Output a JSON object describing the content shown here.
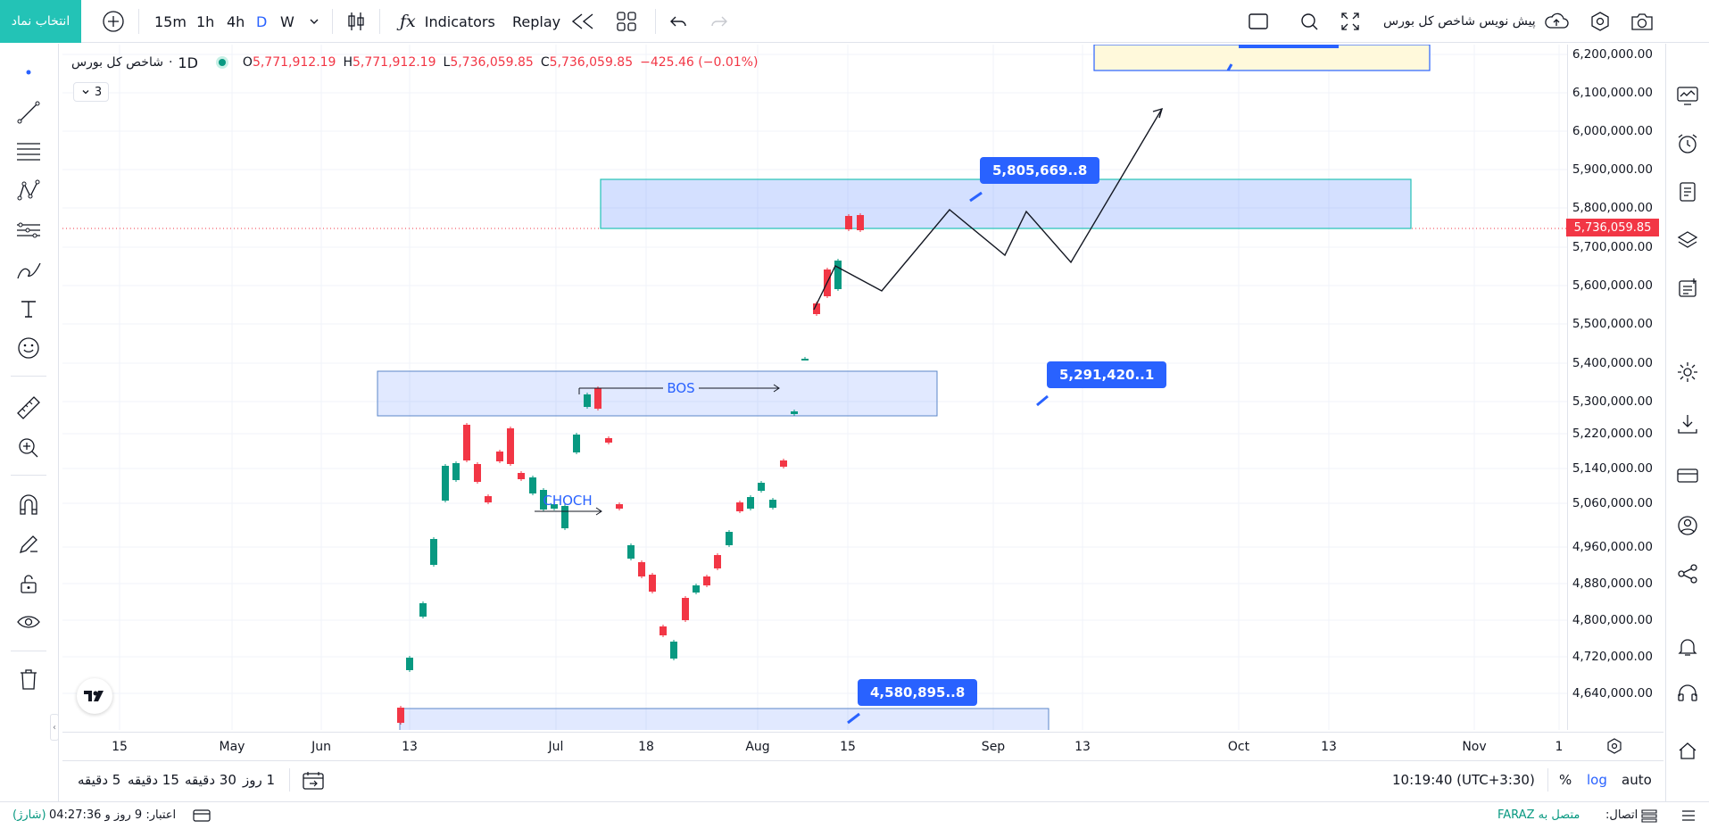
{
  "topbar": {
    "symbol_button": "انتخاب نماد",
    "intervals": [
      "15m",
      "1h",
      "4h",
      "D",
      "W"
    ],
    "active_interval": "D",
    "indicators_label": "Indicators",
    "replay_label": "Replay",
    "layout_title": "پیش نویس شاخص کل بورس"
  },
  "legend": {
    "symbol": "شاخص کل بورس",
    "interval": "1D",
    "open_key": "O",
    "open": "5,771,912.19",
    "high_key": "H",
    "high": "5,771,912.19",
    "low_key": "L",
    "low": "5,736,059.85",
    "close_key": "C",
    "close": "5,736,059.85",
    "change": "−425.46 (−0.01%)",
    "indicator_count": "3"
  },
  "price_axis": {
    "labels": [
      "6,200,000.00",
      "6,100,000.00",
      "6,000,000.00",
      "5,900,000.00",
      "5,800,000.00",
      "5,700,000.00",
      "5,600,000.00",
      "5,500,000.00",
      "5,400,000.00",
      "5,300,000.00",
      "5,220,000.00",
      "5,140,000.00",
      "5,060,000.00",
      "4,960,000.00",
      "4,880,000.00",
      "4,800,000.00",
      "4,720,000.00",
      "4,640,000.00"
    ],
    "current_price": "5,736,059.85",
    "current_color": "#f23645"
  },
  "time_axis": {
    "labels": [
      "15",
      "May",
      "Jun",
      "13",
      "Jul",
      "18",
      "Aug",
      "15",
      "Sep",
      "13",
      "Oct",
      "13",
      "Nov",
      "1"
    ]
  },
  "annotations": {
    "bos_label": "BOS",
    "choch_label": "CHOCH",
    "callout_1": "5,805,669..8",
    "callout_2": "5,291,420..1",
    "callout_3": "4,580,895..8"
  },
  "bottom_bar": {
    "ranges": [
      "5 دقیقه",
      "15 دقیقه",
      "30 دقیقه",
      "1 روز"
    ],
    "clock": "10:19:40 (UTC+3:30)",
    "percent": "%",
    "log": "log",
    "auto": "auto"
  },
  "status_bar": {
    "credit": "اعتبار: 9 روز و 04:27:36",
    "charge": "(شارژ)",
    "connection_prefix": "اتصال:",
    "connection_value": "متصل به FARAZ"
  },
  "colors": {
    "accent": "#2962ff",
    "up": "#089981",
    "down": "#f23645",
    "symbol_btn": "#23c3b6"
  }
}
